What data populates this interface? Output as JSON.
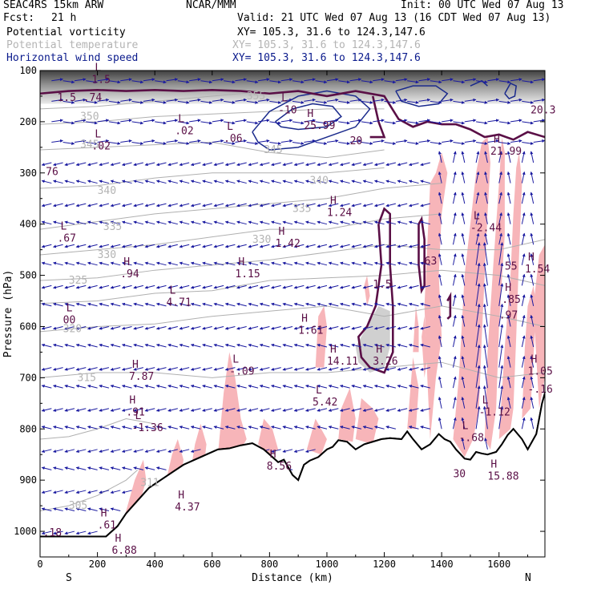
{
  "header": {
    "model": "SEAC4RS 15km ARW",
    "org": "NCAR/MMM",
    "init": "Init: 00 UTC Wed 07 Aug 13",
    "fcst_label": "Fcst:",
    "fcst_value": "21 h",
    "valid": "Valid: 21 UTC Wed 07 Aug 13 (16 CDT Wed 07 Aug 13)",
    "fields": [
      {
        "name": "Potential vorticity",
        "xy": "XY= 105.3, 31.6 to 124.3,147.6",
        "style": "black"
      },
      {
        "name": "Potential temperature",
        "xy": "XY= 105.3, 31.6 to 124.3,147.6",
        "style": "grey"
      },
      {
        "name": "Horizontal wind speed",
        "xy": "XY= 105.3, 31.6 to 124.3,147.6",
        "style": "blue"
      }
    ]
  },
  "chart_data": {
    "type": "cross-section",
    "xlabel": "Distance (km)",
    "ylabel": "Pressure (hPa)",
    "xlim": [
      0,
      1760
    ],
    "ylim": [
      1050,
      100
    ],
    "x_ticks": [
      0,
      200,
      400,
      600,
      800,
      1000,
      1200,
      1400,
      1600
    ],
    "y_ticks": [
      100,
      200,
      300,
      400,
      500,
      600,
      700,
      800,
      900,
      1000
    ],
    "endpoints": {
      "left": "S",
      "right": "N"
    },
    "colors": {
      "terrain": "#000000",
      "theta": "#b0b0b0",
      "pv_contour": "#5a0f46",
      "wind_contour": "#1a2a8c",
      "arrows": "#1a1aa0",
      "shade_pink": "#f7b5b9",
      "shade_grey": "#d0d0d0",
      "labels_pv": "#5a0f46",
      "labels_theta": "#b4b4b4"
    },
    "terrain": [
      [
        0,
        1010
      ],
      [
        100,
        1010
      ],
      [
        230,
        1010
      ],
      [
        270,
        990
      ],
      [
        300,
        965
      ],
      [
        340,
        940
      ],
      [
        380,
        915
      ],
      [
        420,
        900
      ],
      [
        460,
        885
      ],
      [
        500,
        870
      ],
      [
        540,
        860
      ],
      [
        580,
        850
      ],
      [
        620,
        840
      ],
      [
        660,
        838
      ],
      [
        700,
        832
      ],
      [
        740,
        828
      ],
      [
        780,
        840
      ],
      [
        810,
        855
      ],
      [
        830,
        865
      ],
      [
        850,
        860
      ],
      [
        880,
        890
      ],
      [
        900,
        900
      ],
      [
        920,
        870
      ],
      [
        940,
        862
      ],
      [
        970,
        855
      ],
      [
        1000,
        840
      ],
      [
        1020,
        835
      ],
      [
        1040,
        822
      ],
      [
        1070,
        825
      ],
      [
        1100,
        840
      ],
      [
        1130,
        830
      ],
      [
        1160,
        825
      ],
      [
        1190,
        820
      ],
      [
        1220,
        818
      ],
      [
        1260,
        820
      ],
      [
        1280,
        805
      ],
      [
        1300,
        820
      ],
      [
        1330,
        840
      ],
      [
        1360,
        830
      ],
      [
        1390,
        810
      ],
      [
        1410,
        820
      ],
      [
        1430,
        825
      ],
      [
        1450,
        840
      ],
      [
        1480,
        858
      ],
      [
        1500,
        860
      ],
      [
        1520,
        845
      ],
      [
        1540,
        848
      ],
      [
        1560,
        850
      ],
      [
        1590,
        845
      ],
      [
        1610,
        830
      ],
      [
        1630,
        812
      ],
      [
        1650,
        800
      ],
      [
        1680,
        820
      ],
      [
        1700,
        840
      ],
      [
        1730,
        810
      ],
      [
        1750,
        750
      ],
      [
        1760,
        730
      ]
    ],
    "theta_contours": [
      {
        "value": "350",
        "label_at": [
          140,
          190
        ]
      },
      {
        "value": "345",
        "label_at": [
          140,
          245
        ]
      },
      {
        "value": "340",
        "label_at": [
          200,
          335
        ]
      },
      {
        "value": "335",
        "label_at": [
          220,
          405
        ]
      },
      {
        "value": "330",
        "label_at": [
          200,
          460
        ]
      },
      {
        "value": "325",
        "label_at": [
          100,
          510
        ]
      },
      {
        "value": "320",
        "label_at": [
          80,
          605
        ]
      },
      {
        "value": "315",
        "label_at": [
          130,
          700
        ]
      },
      {
        "value": "311",
        "label_at": [
          350,
          905
        ]
      },
      {
        "value": "305",
        "label_at": [
          100,
          950
        ]
      },
      {
        "value": "355",
        "label_at": [
          720,
          150
        ]
      },
      {
        "value": "345",
        "label_at": [
          780,
          255
        ]
      },
      {
        "value": "340",
        "label_at": [
          940,
          315
        ]
      },
      {
        "value": "335",
        "label_at": [
          880,
          370
        ]
      },
      {
        "value": "330",
        "label_at": [
          740,
          430
        ]
      }
    ],
    "hl_labels": [
      {
        "t": "L",
        "v": "1.5",
        "x": 180,
        "p": 110
      },
      {
        "t": "",
        "v": "1.5",
        "x": 60,
        "p": 145
      },
      {
        "t": "",
        "v": ".74",
        "x": 150,
        "p": 145
      },
      {
        "t": "L",
        "v": ".02",
        "x": 180,
        "p": 240
      },
      {
        "t": "L",
        "v": ".02",
        "x": 470,
        "p": 210
      },
      {
        "t": "L",
        "v": ".06",
        "x": 640,
        "p": 225
      },
      {
        "t": "L",
        "v": "-10",
        "x": 830,
        "p": 170
      },
      {
        "t": "H",
        "v": "25.99",
        "x": 920,
        "p": 200
      },
      {
        "t": "",
        "v": "20",
        "x": 1080,
        "p": 230
      },
      {
        "t": "",
        "v": "20.3",
        "x": 1710,
        "p": 170
      },
      {
        "t": "H",
        "v": "21.99",
        "x": 1570,
        "p": 250
      },
      {
        "t": "",
        "v": "76",
        "x": 20,
        "p": 290
      },
      {
        "t": "H",
        "v": "1.24",
        "x": 1000,
        "p": 370
      },
      {
        "t": "L",
        "v": "-2.44",
        "x": 1500,
        "p": 400
      },
      {
        "t": "L",
        "v": ".67",
        "x": 60,
        "p": 420
      },
      {
        "t": "H",
        "v": "1.42",
        "x": 820,
        "p": 430
      },
      {
        "t": "",
        "v": "63",
        "x": 1340,
        "p": 465
      },
      {
        "t": "H",
        "v": ".94",
        "x": 280,
        "p": 490
      },
      {
        "t": "H",
        "v": "1.15",
        "x": 680,
        "p": 490
      },
      {
        "t": "",
        "v": "1.5",
        "x": 1160,
        "p": 510
      },
      {
        "t": "",
        "v": "55",
        "x": 1620,
        "p": 475
      },
      {
        "t": "H",
        "v": "1.54",
        "x": 1690,
        "p": 480
      },
      {
        "t": "L",
        "v": "4.71",
        "x": 440,
        "p": 545
      },
      {
        "t": "H",
        "v": ".85",
        "x": 1610,
        "p": 540
      },
      {
        "t": "",
        "v": ".97",
        "x": 1600,
        "p": 570
      },
      {
        "t": "L",
        "v": "00",
        "x": 80,
        "p": 580
      },
      {
        "t": "H",
        "v": "1.61",
        "x": 900,
        "p": 600
      },
      {
        "t": "H",
        "v": "14.11",
        "x": 1000,
        "p": 660
      },
      {
        "t": "H",
        "v": "3.26",
        "x": 1160,
        "p": 660
      },
      {
        "t": "L",
        "v": "-.09",
        "x": 660,
        "p": 680
      },
      {
        "t": "H",
        "v": "7.87",
        "x": 310,
        "p": 690
      },
      {
        "t": "H",
        "v": "1.05",
        "x": 1700,
        "p": 680
      },
      {
        "t": "",
        "v": "-.16",
        "x": 1700,
        "p": 715
      },
      {
        "t": "L",
        "v": "5.42",
        "x": 950,
        "p": 740
      },
      {
        "t": "H",
        "v": ".91",
        "x": 300,
        "p": 760
      },
      {
        "t": "L",
        "v": "-1.36",
        "x": 320,
        "p": 790
      },
      {
        "t": "L",
        "v": "-1.12",
        "x": 1530,
        "p": 760
      },
      {
        "t": "L",
        "v": "-.68",
        "x": 1460,
        "p": 810
      },
      {
        "t": "H",
        "v": "8.56",
        "x": 790,
        "p": 865
      },
      {
        "t": "H",
        "v": "15.88",
        "x": 1560,
        "p": 885
      },
      {
        "t": "",
        "v": "30",
        "x": 1440,
        "p": 880
      },
      {
        "t": "H",
        "v": "4.37",
        "x": 470,
        "p": 945
      },
      {
        "t": "",
        "v": ".18",
        "x": 10,
        "p": 995
      },
      {
        "t": "H",
        "v": ".61",
        "x": 200,
        "p": 980
      },
      {
        "t": "H",
        "v": "6.88",
        "x": 250,
        "p": 1030
      }
    ]
  }
}
